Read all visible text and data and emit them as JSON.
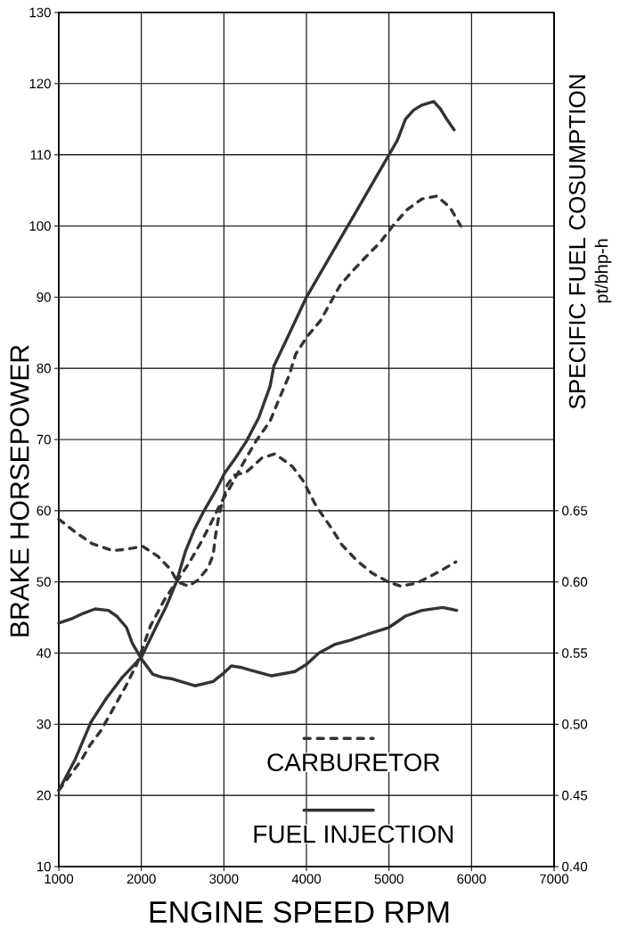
{
  "chart_data": {
    "type": "line",
    "xlabel": "ENGINE SPEED RPM",
    "ylabel": "BRAKE HORSEPOWER",
    "y2label": "SPECIFIC FUEL COSUMPTION",
    "annotations": [
      "pt/bhp-h"
    ],
    "xlim": [
      1000,
      7000
    ],
    "xticks": [
      1000,
      2000,
      3000,
      4000,
      5000,
      6000,
      7000
    ],
    "ylim": [
      10,
      130
    ],
    "yticks": [
      10,
      20,
      30,
      40,
      50,
      60,
      70,
      80,
      90,
      100,
      110,
      120,
      130
    ],
    "y2lim": [
      0.4,
      1.0
    ],
    "y2ticks": [
      {
        "value": 0.4,
        "label": "0.40"
      },
      {
        "value": 0.45,
        "label": "0.45"
      },
      {
        "value": 0.5,
        "label": "0.50"
      },
      {
        "value": 0.55,
        "label": "0.55"
      },
      {
        "value": 0.6,
        "label": "0.60"
      },
      {
        "value": 0.65,
        "label": "0.65"
      }
    ],
    "grid": true,
    "legend": "bottom right",
    "series": [
      {
        "name": "CARBURETOR",
        "color": "#333333",
        "line_style": "dashed",
        "x": [
          1000,
          1270,
          1380,
          1510,
          1650,
          1800,
          1940,
          2030,
          2110,
          2280,
          2425,
          2570,
          2720,
          2850,
          2960,
          3110,
          3240,
          3390,
          3560,
          3680,
          3790,
          3870,
          4010,
          4170,
          4280,
          4410,
          4560,
          4740,
          4900,
          5045,
          5220,
          5400,
          5580,
          5740,
          5870
        ],
        "values": [
          20.7,
          24.9,
          27.1,
          29.1,
          32,
          35.1,
          38.3,
          41.2,
          43.8,
          47.5,
          50,
          52.5,
          55.5,
          58.4,
          61,
          64,
          66.8,
          69.8,
          72.6,
          76,
          79,
          82,
          84.5,
          86.7,
          89,
          91.7,
          93.7,
          95.9,
          97.8,
          100,
          102.3,
          103.8,
          104.2,
          102.6,
          100
        ]
      },
      {
        "name": "FUEL INJECTION",
        "color": "#333333",
        "line_style": "solid",
        "x": [
          1000,
          1200,
          1390,
          1580,
          1770,
          2000,
          2200,
          2300,
          2425,
          2535,
          2640,
          2760,
          2900,
          3010,
          3140,
          3270,
          3420,
          3560,
          3605,
          3790,
          4000,
          4200,
          4400,
          4600,
          4800,
          5000,
          5100,
          5200,
          5300,
          5400,
          5540,
          5620,
          5700,
          5790
        ],
        "values": [
          20.7,
          25.1,
          30.3,
          33.7,
          36.6,
          39.4,
          44.2,
          46.5,
          50,
          54.3,
          57.3,
          60,
          62.8,
          65.3,
          67.4,
          69.7,
          73,
          77.5,
          80.3,
          84.8,
          90,
          94,
          98,
          102,
          106,
          110,
          112,
          115,
          116.3,
          117,
          117.5,
          116.5,
          115,
          113.5
        ]
      },
      {
        "color": "#333333",
        "line_style": "dashed",
        "axis": "y2",
        "x": [
          1000,
          1200,
          1400,
          1650,
          1830,
          2015,
          2200,
          2350,
          2440,
          2570,
          2680,
          2810,
          2870,
          2900,
          2945,
          3040,
          3125,
          3270,
          3460,
          3620,
          3830,
          3960,
          4120,
          4300,
          4430,
          4610,
          4800,
          4990,
          5140,
          5330,
          5570,
          5810
        ],
        "values": [
          0.644,
          0.635,
          0.627,
          0.622,
          0.623,
          0.625,
          0.618,
          0.609,
          0.6,
          0.597,
          0.601,
          0.61,
          0.619,
          0.633,
          0.648,
          0.668,
          0.675,
          0.677,
          0.687,
          0.69,
          0.681,
          0.671,
          0.653,
          0.638,
          0.626,
          0.615,
          0.606,
          0.6,
          0.597,
          0.599,
          0.606,
          0.614
        ]
      },
      {
        "color": "#333333",
        "line_style": "solid",
        "axis": "y2",
        "x": [
          1000,
          1150,
          1300,
          1440,
          1600,
          1700,
          1820,
          1890,
          2000,
          2140,
          2250,
          2360,
          2540,
          2650,
          2870,
          3000,
          3090,
          3200,
          3320,
          3580,
          3860,
          4000,
          4150,
          4340,
          4530,
          4730,
          5000,
          5200,
          5400,
          5650,
          5820
        ],
        "values": [
          0.571,
          0.574,
          0.578,
          0.581,
          0.58,
          0.576,
          0.568,
          0.557,
          0.546,
          0.535,
          0.533,
          0.532,
          0.529,
          0.527,
          0.53,
          0.536,
          0.541,
          0.54,
          0.538,
          0.534,
          0.537,
          0.542,
          0.55,
          0.556,
          0.559,
          0.563,
          0.568,
          0.576,
          0.58,
          0.582,
          0.58
        ]
      }
    ]
  }
}
